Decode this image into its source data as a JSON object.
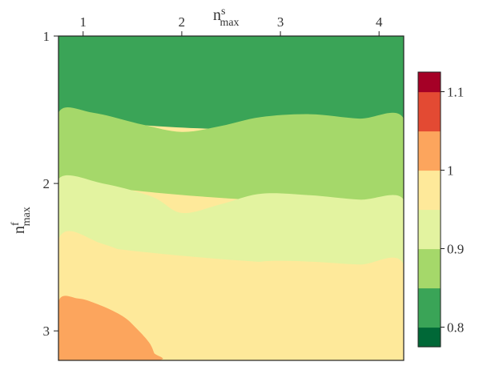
{
  "chart_data": {
    "type": "heatmap",
    "subtype": "filled-contour",
    "xlabel": {
      "base": "n",
      "sup": "s",
      "sub": "max"
    },
    "ylabel": {
      "base": "n",
      "sup": "f",
      "sub": "max"
    },
    "x_axis_position": "top",
    "y_axis_inverted": true,
    "xlim": [
      0.75,
      4.25
    ],
    "ylim": [
      1.0,
      3.2
    ],
    "x_ticks": [
      1,
      2,
      3,
      4
    ],
    "x_tick_labels": [
      "1",
      "2",
      "3",
      "4"
    ],
    "y_ticks": [
      1,
      2,
      3
    ],
    "y_tick_labels": [
      "1",
      "2",
      "3"
    ],
    "levels": [
      0.775,
      0.8,
      0.85,
      0.9,
      0.95,
      1.0,
      1.05,
      1.1,
      1.125
    ],
    "level_colors": [
      "#006837",
      "#3aa457",
      "#a5d86a",
      "#e3f3a0",
      "#fee99a",
      "#fca55d",
      "#e34a33",
      "#a50026"
    ],
    "colorbar_ticks": [
      0.8,
      0.9,
      1,
      1.1
    ],
    "colorbar_tick_labels": [
      "0.8",
      "0.9",
      "1",
      "1.1"
    ],
    "grid": false,
    "regions": [
      {
        "range": [
          0.775,
          0.8
        ],
        "color": "#006837",
        "x": [
          0.75,
          1.19,
          1.85,
          2.2,
          2.25,
          2.24,
          2.2,
          1.7,
          1.2,
          0.75
        ],
        "y": [
          0.8,
          0.8,
          0.8,
          0.8,
          0.88,
          1.0,
          1.04,
          1.05,
          1.07,
          1.08
        ]
      },
      {
        "range": [
          0.8,
          0.85
        ],
        "color": "#3aa457",
        "x": [
          0.75,
          1.2,
          1.7,
          2.0,
          2.4,
          2.9,
          3.5,
          4.25,
          4.25,
          0.75
        ],
        "y": [
          0.8,
          0.8,
          0.8,
          0.8,
          0.8,
          0.8,
          0.8,
          0.8,
          1.56,
          1.52
        ]
      },
      {
        "range": [
          0.85,
          0.9
        ],
        "color": "#a5d86a",
        "x": [
          0.75,
          1.1,
          1.6,
          2.0,
          2.4,
          2.8,
          3.3,
          3.8,
          4.25,
          4.25,
          0.75
        ],
        "y": [
          1.52,
          1.52,
          1.6,
          1.65,
          1.61,
          1.55,
          1.53,
          1.56,
          1.56,
          2.11,
          1.97
        ]
      },
      {
        "range": [
          0.9,
          0.95
        ],
        "color": "#e3f3a0",
        "x": [
          0.75,
          1.2,
          1.7,
          2.0,
          2.4,
          2.8,
          3.3,
          3.8,
          4.25,
          4.25,
          0.75
        ],
        "y": [
          1.97,
          2.0,
          2.09,
          2.2,
          2.14,
          2.07,
          2.08,
          2.11,
          2.11,
          2.55,
          2.38
        ]
      },
      {
        "range": [
          0.95,
          1.0
        ],
        "color": "#fee99a",
        "x": [
          0.75,
          1.2,
          1.7,
          2.0,
          2.4,
          2.8,
          3.3,
          3.8,
          4.25,
          4.25,
          0.75
        ],
        "y": [
          2.38,
          2.41,
          2.55,
          2.62,
          2.59,
          2.53,
          2.53,
          2.55,
          2.55,
          3.2,
          3.2
        ]
      },
      {
        "range": [
          1.0,
          1.05
        ],
        "color": "#fca55d",
        "x": [
          0.75,
          0.95,
          1.15,
          1.4,
          1.55,
          1.67,
          1.72,
          1.74,
          0.75
        ],
        "y": [
          2.8,
          2.78,
          2.82,
          2.9,
          2.99,
          3.08,
          3.15,
          3.2,
          3.2
        ]
      }
    ]
  }
}
